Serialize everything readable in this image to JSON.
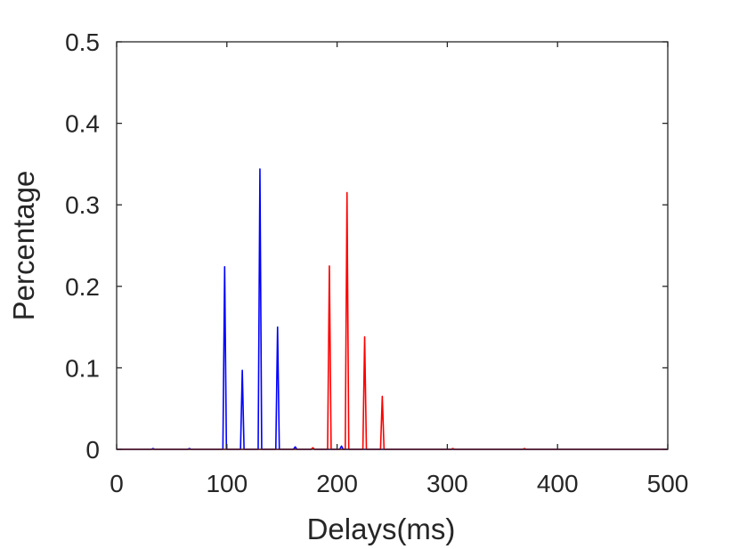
{
  "chart_data": {
    "type": "line",
    "title": "",
    "xlabel": "Delays(ms)",
    "ylabel": "Percentage",
    "xlim": [
      0,
      500
    ],
    "ylim": [
      0,
      0.5
    ],
    "xticks": [
      0,
      100,
      200,
      300,
      400,
      500
    ],
    "yticks": [
      0,
      0.1,
      0.2,
      0.3,
      0.4,
      0.5
    ],
    "xtick_labels": [
      "0",
      "100",
      "200",
      "300",
      "400",
      "500"
    ],
    "ytick_labels": [
      "0",
      "0.1",
      "0.2",
      "0.3",
      "0.4",
      "0.5"
    ],
    "grid": false,
    "legend": false,
    "series": [
      {
        "color": "#0000ff",
        "peaks": [
          {
            "x": 33,
            "y": 0.001
          },
          {
            "x": 66,
            "y": 0.001
          },
          {
            "x": 98,
            "y": 0.224
          },
          {
            "x": 114,
            "y": 0.097
          },
          {
            "x": 130,
            "y": 0.344
          },
          {
            "x": 146,
            "y": 0.15
          },
          {
            "x": 162,
            "y": 0.003
          },
          {
            "x": 178,
            "y": 0.001
          },
          {
            "x": 204,
            "y": 0.004
          }
        ]
      },
      {
        "color": "#ff0000",
        "peaks": [
          {
            "x": 178,
            "y": 0.002
          },
          {
            "x": 193,
            "y": 0.225
          },
          {
            "x": 209,
            "y": 0.315
          },
          {
            "x": 225,
            "y": 0.138
          },
          {
            "x": 241,
            "y": 0.065
          },
          {
            "x": 305,
            "y": 0.001
          },
          {
            "x": 370,
            "y": 0.001
          }
        ]
      }
    ]
  }
}
